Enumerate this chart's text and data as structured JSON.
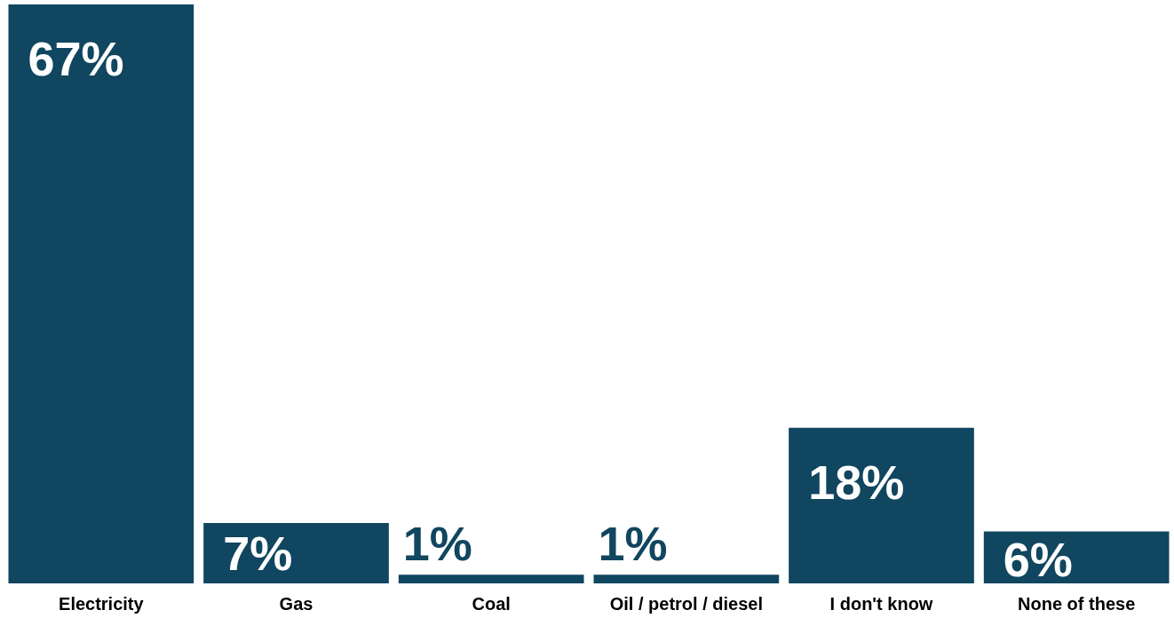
{
  "chart_data": {
    "type": "bar",
    "categories": [
      "Electricity",
      "Gas",
      "Coal",
      "Oil / petrol / diesel",
      "I don't know",
      "None of these"
    ],
    "values": [
      67,
      7,
      1,
      1,
      18,
      6
    ],
    "value_labels": [
      "67%",
      "7%",
      "1%",
      "1%",
      "18%",
      "6%"
    ],
    "color": "#10465f",
    "grid": false,
    "legend": false
  }
}
